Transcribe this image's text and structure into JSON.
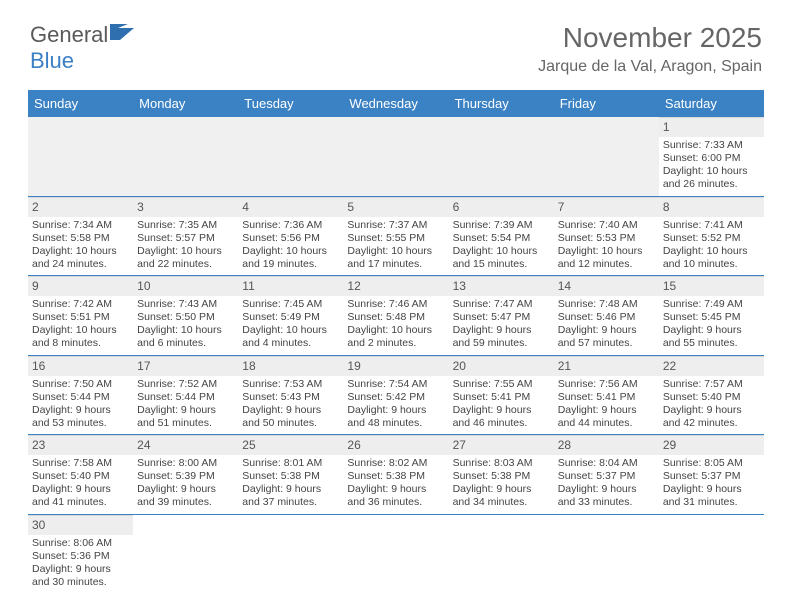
{
  "colors": {
    "header_bg": "#3b82c4",
    "header_text": "#ffffff",
    "daynum_bg": "#eeeeee",
    "blank_bg": "#f0f0f0",
    "rule": "#3b82c4",
    "body_text": "#444444",
    "title_text": "#666666",
    "logo_gray": "#5a5a5a",
    "logo_blue": "#3b7fc4"
  },
  "logo": {
    "part1": "General",
    "part2": "Blue"
  },
  "title": "November 2025",
  "location": "Jarque de la Val, Aragon, Spain",
  "weekdays": [
    "Sunday",
    "Monday",
    "Tuesday",
    "Wednesday",
    "Thursday",
    "Friday",
    "Saturday"
  ],
  "labels": {
    "sunrise": "Sunrise:",
    "sunset": "Sunset:",
    "daylight": "Daylight:"
  },
  "weeks": [
    [
      null,
      null,
      null,
      null,
      null,
      null,
      {
        "n": "1",
        "sunrise": "7:33 AM",
        "sunset": "6:00 PM",
        "daylight": "10 hours and 26 minutes."
      }
    ],
    [
      {
        "n": "2",
        "sunrise": "7:34 AM",
        "sunset": "5:58 PM",
        "daylight": "10 hours and 24 minutes."
      },
      {
        "n": "3",
        "sunrise": "7:35 AM",
        "sunset": "5:57 PM",
        "daylight": "10 hours and 22 minutes."
      },
      {
        "n": "4",
        "sunrise": "7:36 AM",
        "sunset": "5:56 PM",
        "daylight": "10 hours and 19 minutes."
      },
      {
        "n": "5",
        "sunrise": "7:37 AM",
        "sunset": "5:55 PM",
        "daylight": "10 hours and 17 minutes."
      },
      {
        "n": "6",
        "sunrise": "7:39 AM",
        "sunset": "5:54 PM",
        "daylight": "10 hours and 15 minutes."
      },
      {
        "n": "7",
        "sunrise": "7:40 AM",
        "sunset": "5:53 PM",
        "daylight": "10 hours and 12 minutes."
      },
      {
        "n": "8",
        "sunrise": "7:41 AM",
        "sunset": "5:52 PM",
        "daylight": "10 hours and 10 minutes."
      }
    ],
    [
      {
        "n": "9",
        "sunrise": "7:42 AM",
        "sunset": "5:51 PM",
        "daylight": "10 hours and 8 minutes."
      },
      {
        "n": "10",
        "sunrise": "7:43 AM",
        "sunset": "5:50 PM",
        "daylight": "10 hours and 6 minutes."
      },
      {
        "n": "11",
        "sunrise": "7:45 AM",
        "sunset": "5:49 PM",
        "daylight": "10 hours and 4 minutes."
      },
      {
        "n": "12",
        "sunrise": "7:46 AM",
        "sunset": "5:48 PM",
        "daylight": "10 hours and 2 minutes."
      },
      {
        "n": "13",
        "sunrise": "7:47 AM",
        "sunset": "5:47 PM",
        "daylight": "9 hours and 59 minutes."
      },
      {
        "n": "14",
        "sunrise": "7:48 AM",
        "sunset": "5:46 PM",
        "daylight": "9 hours and 57 minutes."
      },
      {
        "n": "15",
        "sunrise": "7:49 AM",
        "sunset": "5:45 PM",
        "daylight": "9 hours and 55 minutes."
      }
    ],
    [
      {
        "n": "16",
        "sunrise": "7:50 AM",
        "sunset": "5:44 PM",
        "daylight": "9 hours and 53 minutes."
      },
      {
        "n": "17",
        "sunrise": "7:52 AM",
        "sunset": "5:44 PM",
        "daylight": "9 hours and 51 minutes."
      },
      {
        "n": "18",
        "sunrise": "7:53 AM",
        "sunset": "5:43 PM",
        "daylight": "9 hours and 50 minutes."
      },
      {
        "n": "19",
        "sunrise": "7:54 AM",
        "sunset": "5:42 PM",
        "daylight": "9 hours and 48 minutes."
      },
      {
        "n": "20",
        "sunrise": "7:55 AM",
        "sunset": "5:41 PM",
        "daylight": "9 hours and 46 minutes."
      },
      {
        "n": "21",
        "sunrise": "7:56 AM",
        "sunset": "5:41 PM",
        "daylight": "9 hours and 44 minutes."
      },
      {
        "n": "22",
        "sunrise": "7:57 AM",
        "sunset": "5:40 PM",
        "daylight": "9 hours and 42 minutes."
      }
    ],
    [
      {
        "n": "23",
        "sunrise": "7:58 AM",
        "sunset": "5:40 PM",
        "daylight": "9 hours and 41 minutes."
      },
      {
        "n": "24",
        "sunrise": "8:00 AM",
        "sunset": "5:39 PM",
        "daylight": "9 hours and 39 minutes."
      },
      {
        "n": "25",
        "sunrise": "8:01 AM",
        "sunset": "5:38 PM",
        "daylight": "9 hours and 37 minutes."
      },
      {
        "n": "26",
        "sunrise": "8:02 AM",
        "sunset": "5:38 PM",
        "daylight": "9 hours and 36 minutes."
      },
      {
        "n": "27",
        "sunrise": "8:03 AM",
        "sunset": "5:38 PM",
        "daylight": "9 hours and 34 minutes."
      },
      {
        "n": "28",
        "sunrise": "8:04 AM",
        "sunset": "5:37 PM",
        "daylight": "9 hours and 33 minutes."
      },
      {
        "n": "29",
        "sunrise": "8:05 AM",
        "sunset": "5:37 PM",
        "daylight": "9 hours and 31 minutes."
      }
    ],
    [
      {
        "n": "30",
        "sunrise": "8:06 AM",
        "sunset": "5:36 PM",
        "daylight": "9 hours and 30 minutes."
      },
      null,
      null,
      null,
      null,
      null,
      null
    ]
  ]
}
